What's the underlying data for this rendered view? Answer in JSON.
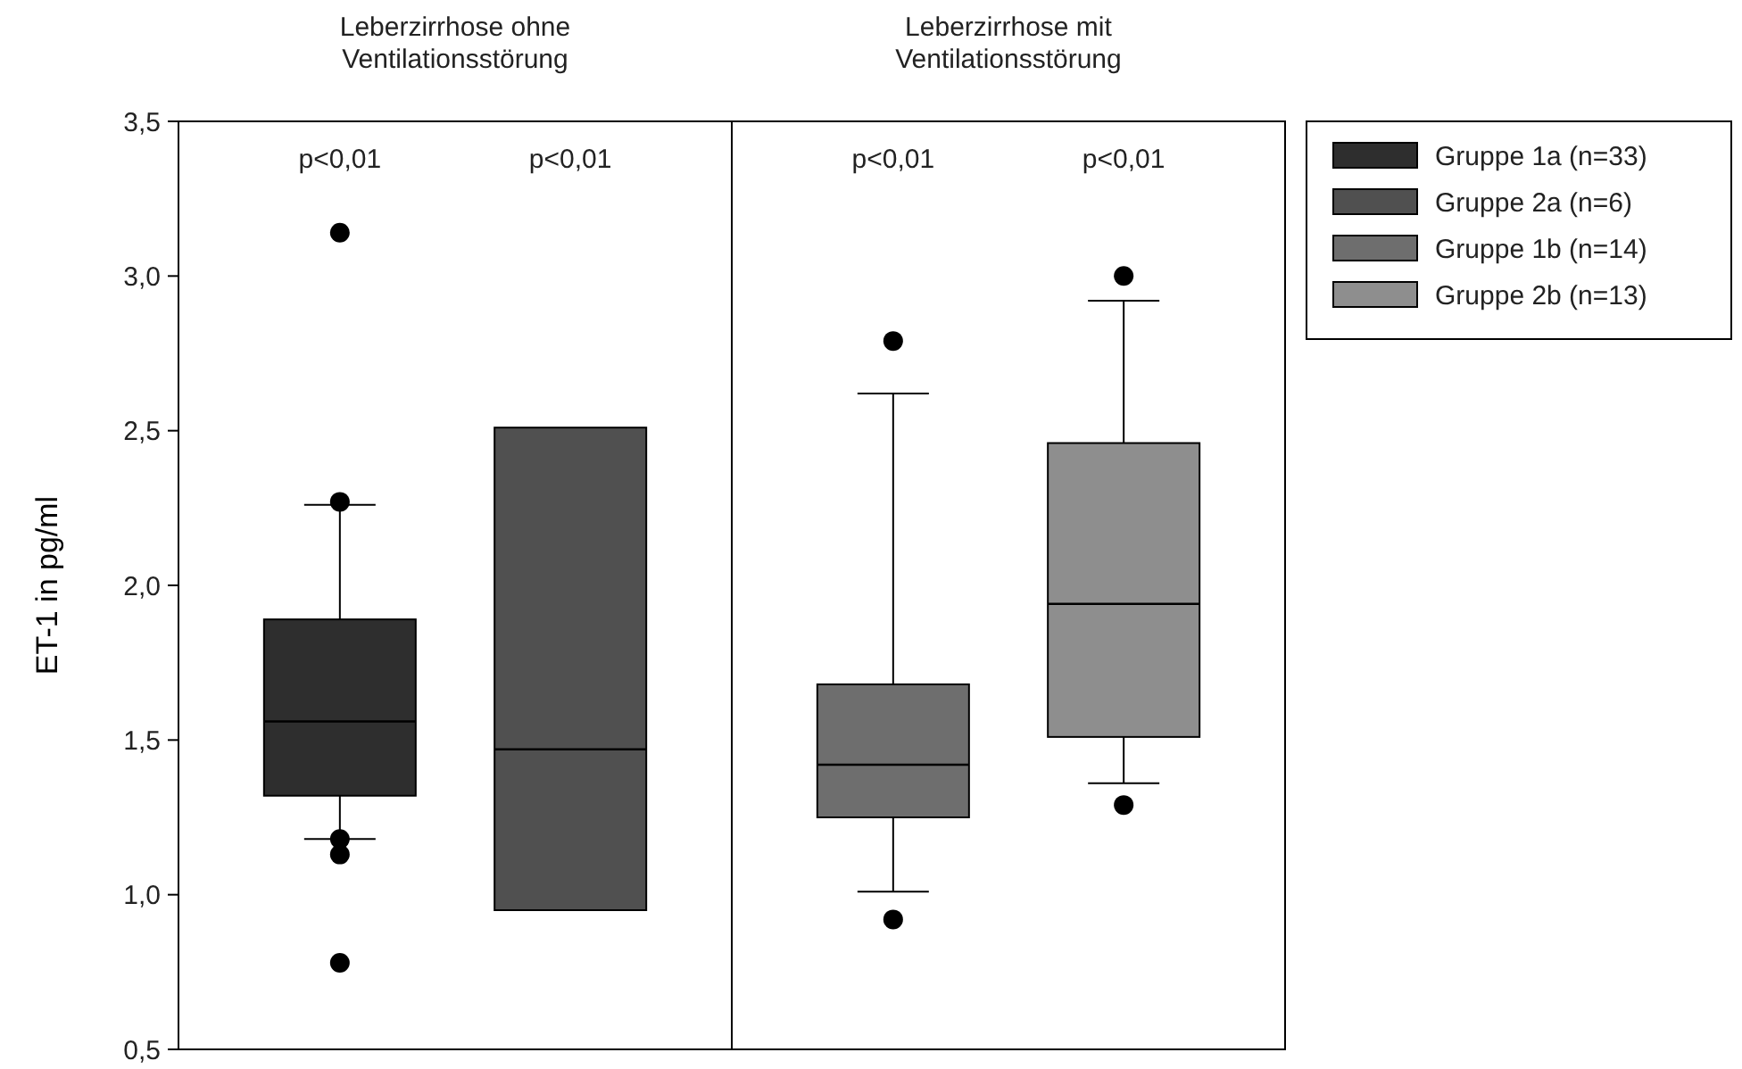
{
  "chart_data": {
    "type": "box",
    "ylabel": "ET-1 in pg/ml",
    "categories": [
      "Leberzirrhose ohne Ventilationsstörung",
      "Leberzirrhose mit Ventilationsstörung"
    ],
    "ylim": [
      0.5,
      3.5
    ],
    "yticks": [
      {
        "value": 0.5,
        "label": "0,5"
      },
      {
        "value": 1,
        "label": "1,0"
      },
      {
        "value": 1.5,
        "label": "1,5"
      },
      {
        "value": 2,
        "label": "2,0"
      },
      {
        "value": 2.5,
        "label": "2,5"
      },
      {
        "value": 3,
        "label": "3,0"
      },
      {
        "value": 3.5,
        "label": "3,5"
      }
    ],
    "grid": false,
    "legend": "top right",
    "series": [
      {
        "name": "Gruppe 1a (n=33)",
        "color": "#2e2e2e",
        "boxes": [
          {
            "low": 1.18,
            "q1": 1.32,
            "median": 1.56,
            "q3": 1.89,
            "high": 2.26,
            "outliers": [
              3.14,
              2.27,
              1.18,
              1.13,
              0.78
            ]
          },
          null
        ]
      },
      {
        "name": "Gruppe 2a (n=6)",
        "color": "#505050",
        "boxes": [
          {
            "low": 0.95,
            "q1": 0.95,
            "median": 1.47,
            "q3": 2.51,
            "high": 2.51
          },
          null
        ]
      },
      {
        "name": "Gruppe 1b (n=14)",
        "color": "#6e6e6e",
        "boxes": [
          null,
          {
            "low": 1.01,
            "q1": 1.25,
            "median": 1.42,
            "q3": 1.68,
            "high": 2.62,
            "outliers": [
              2.79,
              0.92
            ]
          }
        ]
      },
      {
        "name": "Gruppe 2b (n=13)",
        "color": "#8e8e8e",
        "boxes": [
          null,
          {
            "low": 1.36,
            "q1": 1.51,
            "median": 1.94,
            "q3": 2.46,
            "high": 2.92,
            "outliers": [
              3.0,
              1.29
            ]
          }
        ]
      }
    ],
    "annotations": [
      "p<0,01",
      "p<0,01",
      "p<0,01",
      "p<0,01"
    ]
  }
}
